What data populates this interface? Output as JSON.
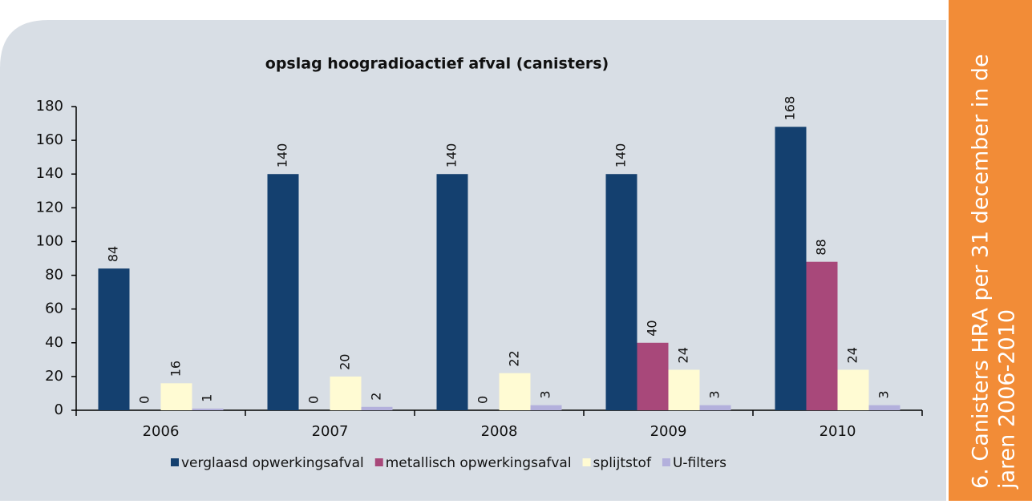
{
  "chart_data": {
    "type": "bar",
    "title": "opslag hoogradioactief afval (canisters)",
    "categories": [
      "2006",
      "2007",
      "2008",
      "2009",
      "2010"
    ],
    "series": [
      {
        "name": "verglaasd opwerkingsafval",
        "color": "#14406f",
        "values": [
          84,
          140,
          140,
          140,
          168
        ]
      },
      {
        "name": "metallisch opwerkingsafval",
        "color": "#a8487a",
        "values": [
          0,
          0,
          0,
          40,
          88
        ]
      },
      {
        "name": "splijtstof",
        "color": "#fffbd3",
        "values": [
          16,
          20,
          22,
          24,
          24
        ]
      },
      {
        "name": "U-filters",
        "color": "#b3b0dc",
        "values": [
          1,
          2,
          3,
          3,
          3
        ]
      }
    ],
    "ylim": [
      0,
      180
    ],
    "yticks": [
      0,
      20,
      40,
      60,
      80,
      100,
      120,
      140,
      160,
      180
    ],
    "grid": false,
    "legend": "bottom"
  },
  "sidebar": {
    "lines": [
      "6. Canisters HRA  per 31 december in de",
      "jaren 2006-2010"
    ]
  }
}
